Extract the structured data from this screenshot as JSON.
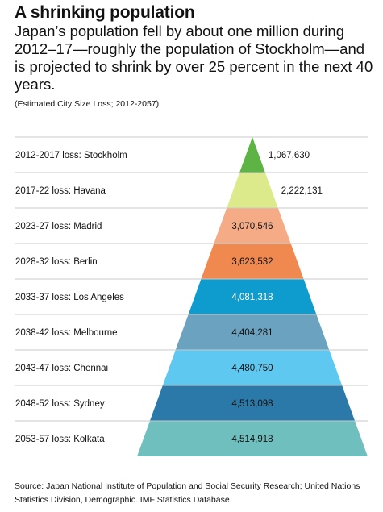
{
  "header": {
    "title": "A shrinking population",
    "subtitle": "Japan’s population fell by about one million during 2012–17—roughly the population of Stockholm—and is projected to shrink by over 25 percent in the next 40 years.",
    "note": "(Estimated City Size Loss; 2012-2057)"
  },
  "chart_data": {
    "type": "bar",
    "title": "",
    "xlabel": "",
    "ylabel": "",
    "categories": [
      "2012-2017 loss: Stockholm",
      "2017-22 loss: Havana",
      "2023-27 loss: Madrid",
      "2028-32 loss: Berlin",
      "2033-37 loss: Los Angeles",
      "2038-42 loss: Melbourne",
      "2043-47 loss: Chennai",
      "2048-52 loss: Sydney",
      "2053-57 loss: Kolkata"
    ],
    "values": [
      1067630,
      2222131,
      3070546,
      3623532,
      4081318,
      4404281,
      4480750,
      4513098,
      4514918
    ],
    "value_labels": [
      "1,067,630",
      "2,222,131",
      "3,070,546",
      "3,623,532",
      "4,081,318",
      "4,404,281",
      "4,480,750",
      "4,513,098",
      "4,514,918"
    ],
    "colors": [
      "#5db344",
      "#dcea8c",
      "#f4ab86",
      "#f0894f",
      "#0d9ccd",
      "#6aa2c0",
      "#5fc8f0",
      "#2a79a8",
      "#6fbfbe"
    ],
    "label_colors": [
      "#111111",
      "#111111",
      "#111111",
      "#111111",
      "#ffffff",
      "#111111",
      "#111111",
      "#111111",
      "#111111"
    ],
    "grid": false,
    "legend": "none"
  },
  "footer": {
    "source": "Source: Japan National Institute of Population and Social Security Research; United Nations Statistics Division, Demographic. IMF Statistics Database."
  }
}
